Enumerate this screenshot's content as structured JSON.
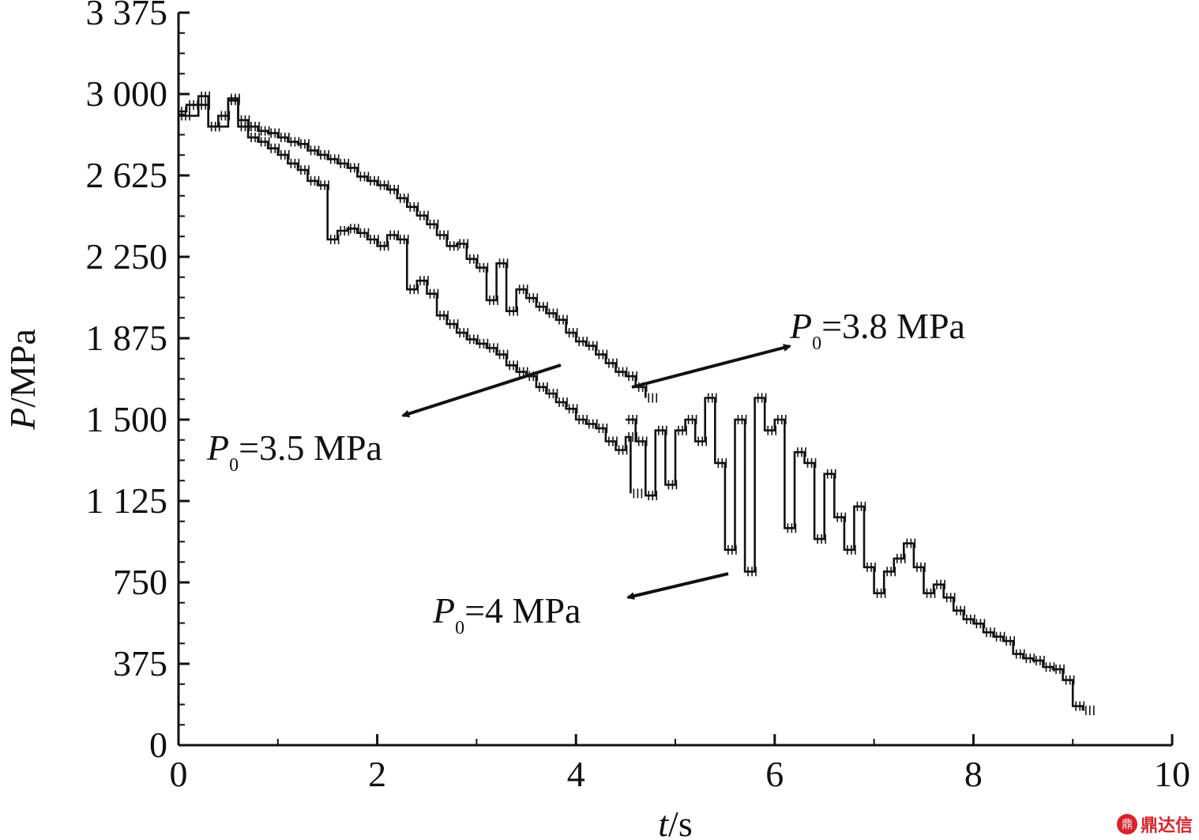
{
  "chart_data": {
    "type": "line",
    "xlabel_italic": "t",
    "xlabel_rest": "/s",
    "ylabel_italic": "P",
    "ylabel_rest": "/MPa",
    "xlim": [
      0,
      10
    ],
    "ylim": [
      0,
      3375
    ],
    "x_ticks": [
      0,
      2,
      4,
      6,
      8,
      10
    ],
    "x_tick_labels": [
      "0",
      "2",
      "4",
      "6",
      "8",
      "10"
    ],
    "y_ticks": [
      0,
      375,
      750,
      1125,
      1500,
      1875,
      2250,
      2625,
      3000,
      3375
    ],
    "y_tick_labels": [
      "0",
      "375",
      "750",
      "1 125",
      "1 500",
      "1 875",
      "2 250",
      "2 625",
      "3 000",
      "3 375"
    ],
    "grid": false,
    "legend": "annotations with arrows",
    "series": [
      {
        "name": "P0=3.5 MPa",
        "annotation": {
          "prefix": "P",
          "sub": "0",
          "text": "=3.5 MPa"
        },
        "x": [
          0.0,
          0.08,
          0.2,
          0.3,
          0.4,
          0.5,
          0.6,
          0.7,
          0.8,
          0.9,
          1.0,
          1.1,
          1.2,
          1.3,
          1.4,
          1.5,
          1.6,
          1.7,
          1.8,
          1.9,
          2.0,
          2.1,
          2.2,
          2.3,
          2.4,
          2.5,
          2.6,
          2.7,
          2.8,
          2.9,
          3.0,
          3.1,
          3.2,
          3.3,
          3.4,
          3.5,
          3.6,
          3.7,
          3.8,
          3.9,
          4.0,
          4.1,
          4.2,
          4.3,
          4.4,
          4.5,
          4.55
        ],
        "y": [
          2920,
          2950,
          2990,
          2850,
          2900,
          2980,
          2850,
          2800,
          2780,
          2750,
          2720,
          2680,
          2650,
          2600,
          2580,
          2330,
          2370,
          2380,
          2360,
          2330,
          2300,
          2350,
          2330,
          2100,
          2140,
          2080,
          1980,
          1940,
          1900,
          1870,
          1850,
          1830,
          1800,
          1750,
          1720,
          1700,
          1650,
          1620,
          1580,
          1550,
          1500,
          1480,
          1460,
          1400,
          1360,
          1420,
          1160
        ]
      },
      {
        "name": "P0=3.8 MPa",
        "annotation": {
          "prefix": "P",
          "sub": "0",
          "text": "=3.8 MPa"
        },
        "x": [
          0.0,
          0.2,
          0.3,
          0.5,
          0.6,
          0.7,
          0.8,
          0.9,
          1.0,
          1.1,
          1.2,
          1.3,
          1.4,
          1.5,
          1.6,
          1.7,
          1.8,
          1.9,
          2.0,
          2.1,
          2.2,
          2.3,
          2.4,
          2.5,
          2.6,
          2.7,
          2.8,
          2.9,
          3.0,
          3.1,
          3.2,
          3.3,
          3.4,
          3.5,
          3.6,
          3.7,
          3.8,
          3.9,
          4.0,
          4.1,
          4.2,
          4.3,
          4.4,
          4.5,
          4.6,
          4.7
        ],
        "y": [
          2900,
          2950,
          2850,
          2970,
          2880,
          2850,
          2830,
          2820,
          2800,
          2780,
          2770,
          2740,
          2720,
          2700,
          2680,
          2660,
          2620,
          2600,
          2580,
          2560,
          2520,
          2480,
          2440,
          2400,
          2350,
          2300,
          2310,
          2240,
          2200,
          2050,
          2220,
          2000,
          2100,
          2060,
          2020,
          1990,
          1960,
          1900,
          1860,
          1840,
          1800,
          1760,
          1720,
          1700,
          1650,
          1600
        ]
      },
      {
        "name": "P0=4 MPa",
        "annotation": {
          "prefix": "P",
          "sub": "0",
          "text": "=4 MPa"
        },
        "x": [
          4.5,
          4.6,
          4.7,
          4.8,
          4.9,
          5.0,
          5.1,
          5.2,
          5.3,
          5.4,
          5.5,
          5.6,
          5.7,
          5.8,
          5.9,
          6.0,
          6.1,
          6.2,
          6.3,
          6.4,
          6.5,
          6.6,
          6.7,
          6.8,
          6.9,
          7.0,
          7.1,
          7.2,
          7.3,
          7.4,
          7.5,
          7.6,
          7.7,
          7.8,
          7.9,
          8.0,
          8.1,
          8.2,
          8.3,
          8.4,
          8.5,
          8.6,
          8.7,
          8.8,
          8.9,
          9.0,
          9.1
        ],
        "y": [
          1500,
          1400,
          1150,
          1450,
          1200,
          1450,
          1500,
          1400,
          1600,
          1300,
          900,
          1500,
          800,
          1600,
          1450,
          1500,
          1000,
          1350,
          1300,
          950,
          1250,
          1050,
          900,
          1100,
          820,
          700,
          800,
          860,
          930,
          820,
          700,
          740,
          680,
          620,
          580,
          560,
          520,
          500,
          480,
          420,
          400,
          390,
          360,
          350,
          300,
          180,
          160
        ]
      }
    ]
  },
  "watermark": {
    "logo_glyph": "鼎",
    "text": "鼎达信"
  }
}
